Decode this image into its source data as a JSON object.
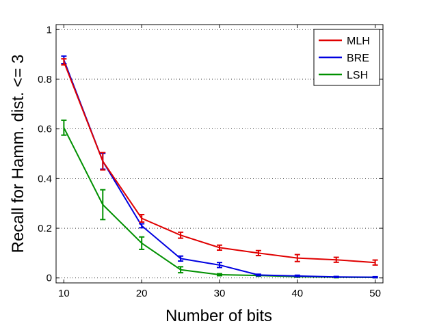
{
  "chart_data": {
    "type": "line",
    "title": "",
    "xlabel": "Number of bits",
    "ylabel": "Recall for Hamm. dist. <= 3",
    "xlim": [
      9,
      51
    ],
    "ylim": [
      -0.02,
      1.02
    ],
    "xticks": [
      10,
      20,
      30,
      40,
      50
    ],
    "yticks": [
      0,
      0.2,
      0.4,
      0.6,
      0.8,
      1
    ],
    "ytick_labels": [
      "0",
      "0.2",
      "0.4",
      "0.6",
      "0.8",
      "1"
    ],
    "grid": "horizontal-dotted",
    "legend_position": "top-right",
    "x": [
      10,
      15,
      20,
      25,
      30,
      35,
      40,
      45,
      50
    ],
    "series": [
      {
        "name": "MLH",
        "color": "#e00000",
        "values": [
          0.87,
          0.47,
          0.24,
          0.172,
          0.122,
          0.1,
          0.08,
          0.073,
          0.062
        ],
        "error": [
          0.012,
          0.035,
          0.015,
          0.012,
          0.01,
          0.01,
          0.014,
          0.01,
          0.01
        ]
      },
      {
        "name": "BRE",
        "color": "#0000e0",
        "values": [
          0.878,
          0.47,
          0.21,
          0.078,
          0.052,
          0.012,
          0.008,
          0.004,
          0.003
        ],
        "error": [
          0.015,
          0.032,
          0.008,
          0.01,
          0.01,
          0.003,
          0.003,
          0.002,
          0.002
        ]
      },
      {
        "name": "LSH",
        "color": "#009000",
        "values": [
          0.605,
          0.295,
          0.14,
          0.033,
          0.013,
          0.01,
          0.005,
          0.003,
          0.002
        ],
        "error": [
          0.03,
          0.06,
          0.025,
          0.012,
          0.004,
          0.003,
          0.002,
          0.002,
          0.001
        ]
      }
    ]
  }
}
